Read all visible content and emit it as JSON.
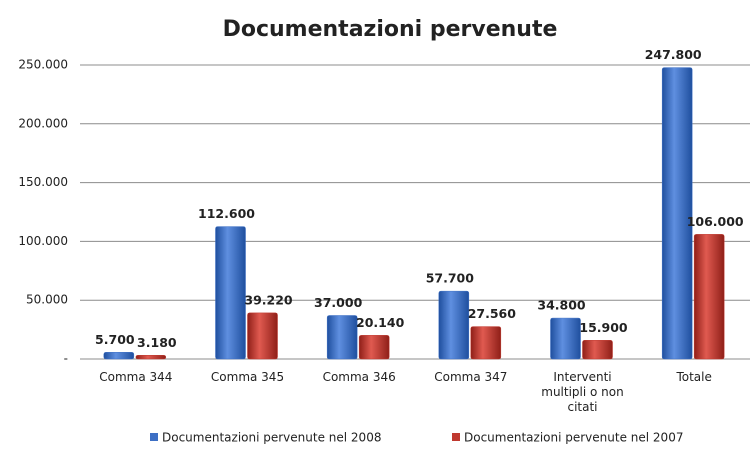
{
  "chart_data": {
    "type": "bar",
    "title": "Documentazioni pervenute",
    "categories": [
      "Comma 344",
      "Comma 345",
      "Comma 346",
      "Comma 347",
      "Interventi multipli o non citati",
      "Totale"
    ],
    "series": [
      {
        "name": "Documentazioni pervenute nel 2008",
        "color": "#3d6fc4",
        "values": [
          5700,
          112600,
          37000,
          57700,
          34800,
          247800
        ],
        "value_labels": [
          "5.700",
          "112.600",
          "37.000",
          "57.700",
          "34.800",
          "247.800"
        ]
      },
      {
        "name": "Documentazioni pervenute nel 2007",
        "color": "#c0392f",
        "values": [
          3180,
          39220,
          20140,
          27560,
          15900,
          106000
        ],
        "value_labels": [
          "3.180",
          "39.220",
          "20.140",
          "27.560",
          "15.900",
          "106.000"
        ]
      }
    ],
    "ylim": [
      0,
      250000
    ],
    "yticks": [
      {
        "value": 0,
        "label": "-"
      },
      {
        "value": 50000,
        "label": "50.000"
      },
      {
        "value": 100000,
        "label": "100.000"
      },
      {
        "value": 150000,
        "label": "150.000"
      },
      {
        "value": 200000,
        "label": "200.000"
      },
      {
        "value": 250000,
        "label": "250.000"
      }
    ],
    "grid": true,
    "legend": "bottom"
  }
}
